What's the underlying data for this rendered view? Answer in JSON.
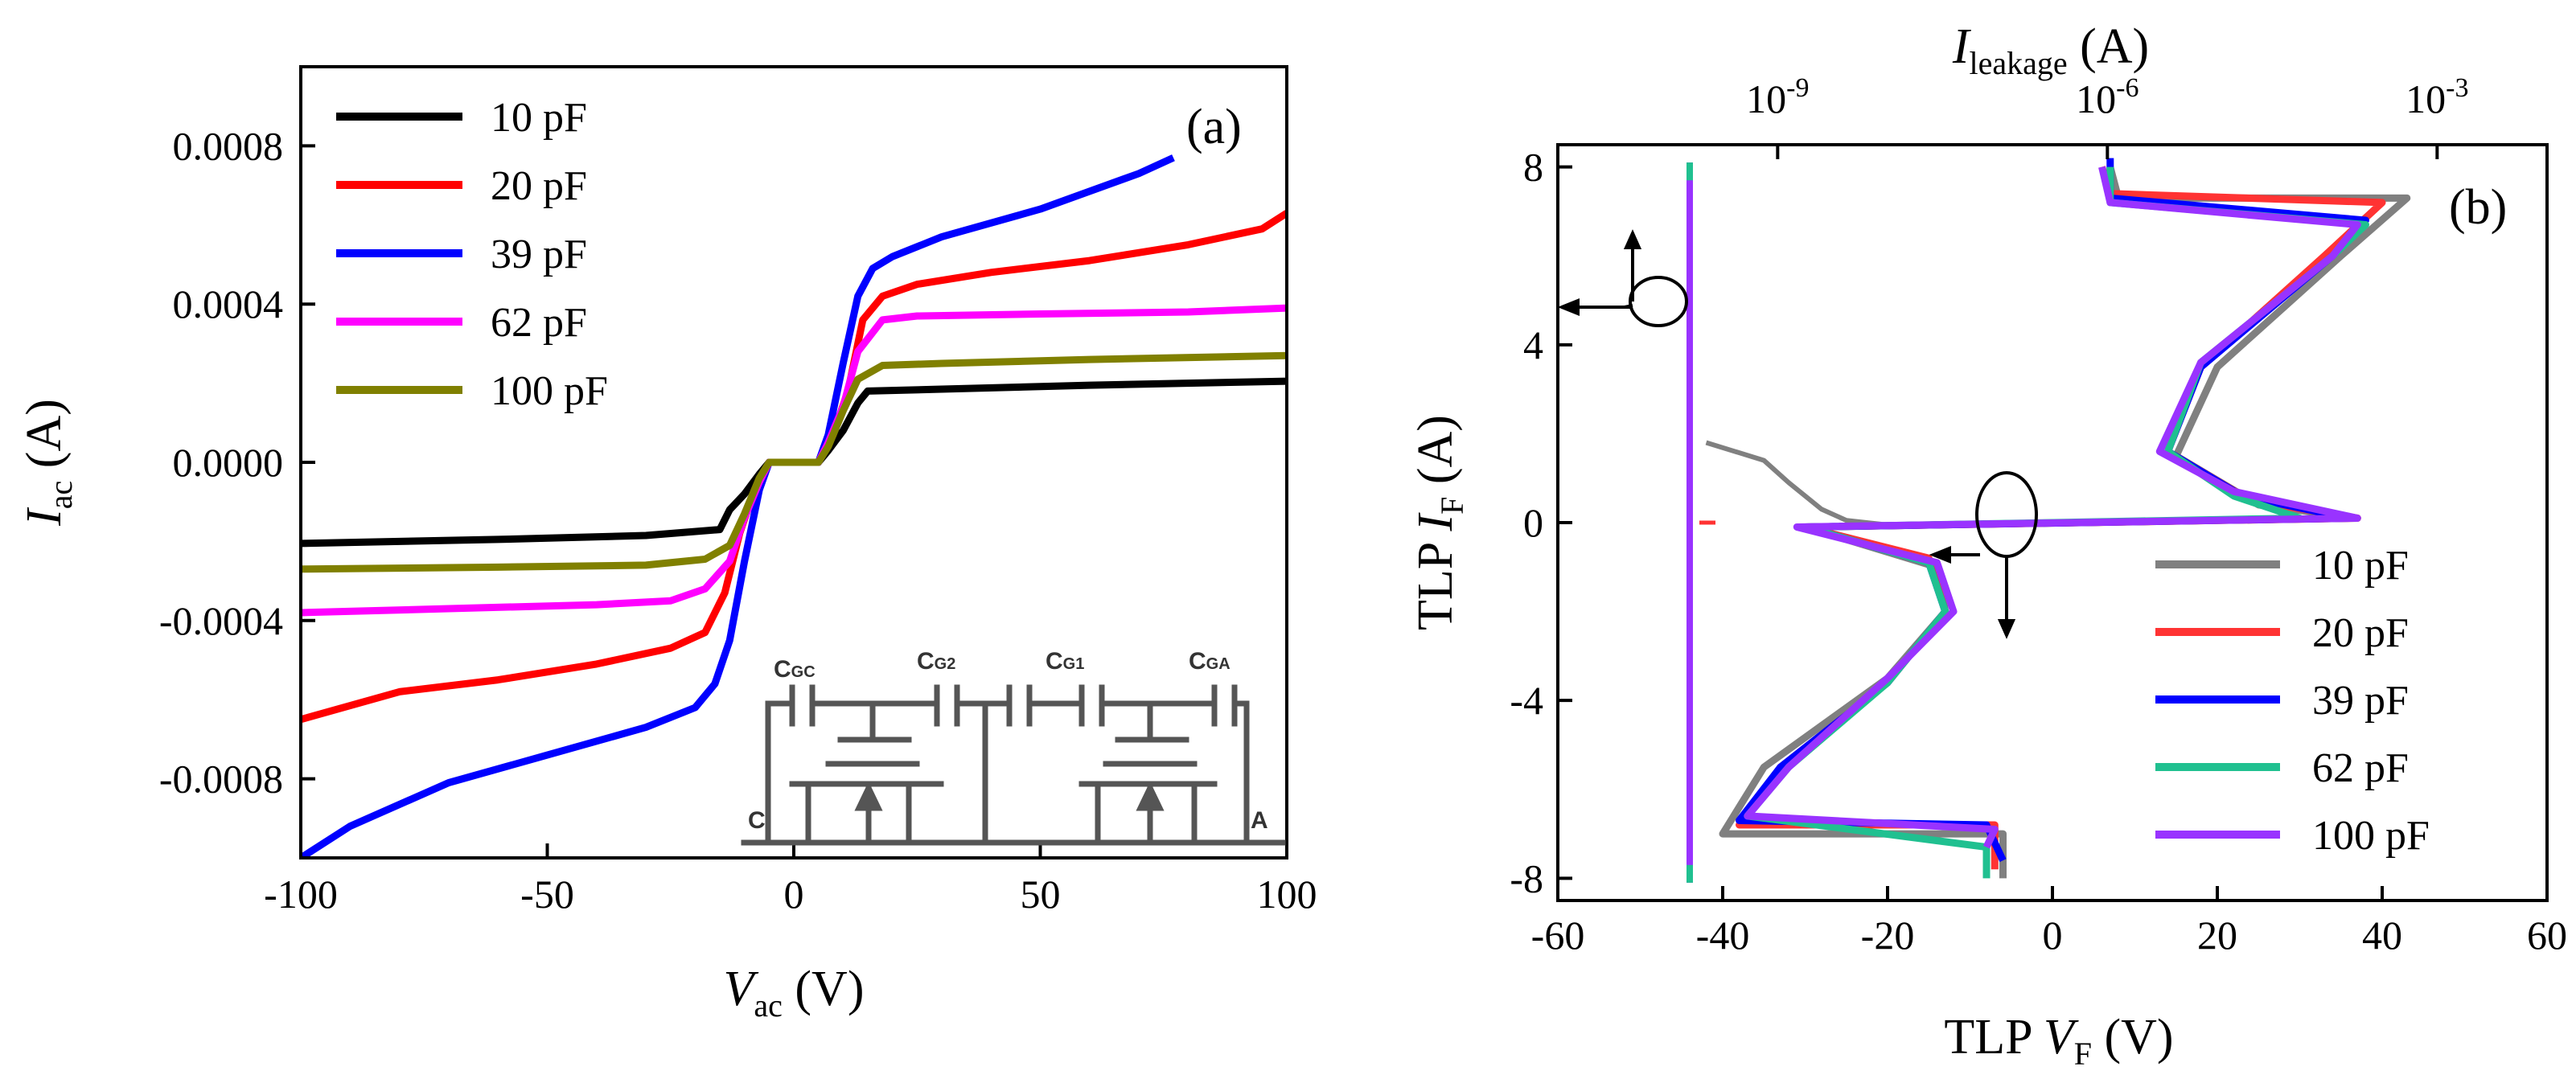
{
  "chart_data": [
    {
      "type": "line",
      "panel_label": "(a)",
      "xlabel_main": "V",
      "xlabel_sub": "ac",
      "xlabel_unit": " (V)",
      "ylabel_main": "I",
      "ylabel_sub": "ac",
      "ylabel_unit": " (A)",
      "xlim": [
        -100,
        100
      ],
      "ylim": [
        -0.001,
        0.001
      ],
      "xticks": [
        -100,
        -50,
        0,
        50,
        100
      ],
      "xtick_labels": [
        "-100",
        "-50",
        "0",
        "50",
        "100"
      ],
      "yticks": [
        -0.0008,
        -0.0004,
        0.0,
        0.0004,
        0.0008
      ],
      "ytick_labels": [
        "-0.0008",
        "-0.0004",
        "0.0000",
        "0.0004",
        "0.0008"
      ],
      "legend_position": "top-left",
      "series": [
        {
          "name": "10 pF",
          "color": "#000000",
          "points": [
            [
              -100,
              -0.000205
            ],
            [
              -60,
              -0.000195
            ],
            [
              -30,
              -0.000185
            ],
            [
              -15,
              -0.00017
            ],
            [
              -13,
              -0.00012
            ],
            [
              -10,
              -8e-05
            ],
            [
              -7,
              -3e-05
            ],
            [
              -5,
              0
            ],
            [
              5,
              0
            ],
            [
              7,
              3e-05
            ],
            [
              10,
              8e-05
            ],
            [
              13,
              0.00015
            ],
            [
              15,
              0.00018
            ],
            [
              30,
              0.000185
            ],
            [
              60,
              0.000195
            ],
            [
              100,
              0.000205
            ]
          ]
        },
        {
          "name": "20 pF",
          "color": "#ff0000",
          "points": [
            [
              -100,
              -0.00065
            ],
            [
              -80,
              -0.00058
            ],
            [
              -60,
              -0.00055
            ],
            [
              -40,
              -0.00051
            ],
            [
              -25,
              -0.00047
            ],
            [
              -18,
              -0.00043
            ],
            [
              -14,
              -0.00033
            ],
            [
              -11,
              -0.00018
            ],
            [
              -8,
              -7e-05
            ],
            [
              -5,
              0
            ],
            [
              5,
              0
            ],
            [
              8,
              7e-05
            ],
            [
              11,
              0.00018
            ],
            [
              14,
              0.00036
            ],
            [
              18,
              0.00042
            ],
            [
              25,
              0.00045
            ],
            [
              40,
              0.00048
            ],
            [
              60,
              0.00051
            ],
            [
              80,
              0.00055
            ],
            [
              95,
              0.00059
            ],
            [
              100,
              0.00063
            ]
          ]
        },
        {
          "name": "39 pF",
          "color": "#0000ff",
          "points": [
            [
              -100,
              -0.001
            ],
            [
              -90,
              -0.00092
            ],
            [
              -70,
              -0.00081
            ],
            [
              -50,
              -0.00074
            ],
            [
              -30,
              -0.00067
            ],
            [
              -20,
              -0.00062
            ],
            [
              -16,
              -0.00056
            ],
            [
              -13,
              -0.00045
            ],
            [
              -10,
              -0.00025
            ],
            [
              -7,
              -7e-05
            ],
            [
              -5,
              0
            ],
            [
              5,
              0
            ],
            [
              7,
              7e-05
            ],
            [
              10,
              0.00025
            ],
            [
              13,
              0.00042
            ],
            [
              16,
              0.00049
            ],
            [
              20,
              0.00052
            ],
            [
              30,
              0.00057
            ],
            [
              50,
              0.00064
            ],
            [
              70,
              0.00073
            ],
            [
              77,
              0.00077
            ]
          ]
        },
        {
          "name": "62 pF",
          "color": "#ff00ff",
          "points": [
            [
              -100,
              -0.00038
            ],
            [
              -70,
              -0.00037
            ],
            [
              -40,
              -0.00036
            ],
            [
              -25,
              -0.00035
            ],
            [
              -18,
              -0.00032
            ],
            [
              -13,
              -0.00025
            ],
            [
              -10,
              -0.00014
            ],
            [
              -7,
              -5e-05
            ],
            [
              -5,
              0
            ],
            [
              5,
              0
            ],
            [
              7,
              5e-05
            ],
            [
              10,
              0.00014
            ],
            [
              13,
              0.00028
            ],
            [
              18,
              0.00036
            ],
            [
              25,
              0.00037
            ],
            [
              50,
              0.000375
            ],
            [
              80,
              0.00038
            ],
            [
              100,
              0.00039
            ]
          ]
        },
        {
          "name": "100 pF",
          "color": "#808000",
          "points": [
            [
              -100,
              -0.00027
            ],
            [
              -60,
              -0.000265
            ],
            [
              -30,
              -0.00026
            ],
            [
              -18,
              -0.000245
            ],
            [
              -13,
              -0.00021
            ],
            [
              -10,
              -0.00013
            ],
            [
              -7,
              -4e-05
            ],
            [
              -5,
              0
            ],
            [
              5,
              0
            ],
            [
              7,
              4e-05
            ],
            [
              10,
              0.00013
            ],
            [
              13,
              0.00021
            ],
            [
              18,
              0.000245
            ],
            [
              30,
              0.00025
            ],
            [
              60,
              0.00026
            ],
            [
              100,
              0.00027
            ]
          ]
        }
      ],
      "inset_labels": {
        "cgc": "GC",
        "cg2": "G2",
        "cg1": "G1",
        "cga": "GA",
        "c_letter": "C",
        "cathode": "C",
        "anode": "A"
      }
    },
    {
      "type": "line",
      "panel_label": "(b)",
      "xlabel_pre": "TLP ",
      "xlabel_main": "V",
      "xlabel_sub": "F",
      "xlabel_unit": " (V)",
      "ylabel_pre": "TLP ",
      "ylabel_main": "I",
      "ylabel_sub": "F",
      "ylabel_unit": " (A)",
      "top_xlabel_main": "I",
      "top_xlabel_sub": "leakage",
      "top_xlabel_unit": " (A)",
      "xlim": [
        -60,
        60
      ],
      "ylim": [
        -8.5,
        8.5
      ],
      "xticks": [
        -60,
        -40,
        -20,
        0,
        20,
        40,
        60
      ],
      "xtick_labels": [
        "-60",
        "-40",
        "-20",
        "0",
        "20",
        "40",
        "60"
      ],
      "yticks": [
        -8,
        -4,
        0,
        4,
        8
      ],
      "ytick_labels": [
        "-8",
        "-4",
        "0",
        "4",
        "8"
      ],
      "top_axis_scale": "log",
      "top_xlim": [
        1e-11,
        0.01
      ],
      "top_ticks": [
        {
          "value": 1e-09,
          "base": "10",
          "exp": "-9"
        },
        {
          "value": 1e-06,
          "base": "10",
          "exp": "-6"
        },
        {
          "value": 0.001,
          "base": "10",
          "exp": "-3"
        }
      ],
      "legend_position": "bottom-right",
      "series": [
        {
          "name": "10 pF",
          "color": "#808080",
          "points": [
            [
              -6,
              -8.0
            ],
            [
              -6,
              -7.0
            ],
            [
              -40,
              -7.0
            ],
            [
              -35,
              -5.5
            ],
            [
              -20,
              -3.5
            ],
            [
              -13,
              -2.0
            ],
            [
              -14,
              -1.0
            ],
            [
              -30,
              -0.1
            ],
            [
              37,
              0.1
            ],
            [
              25,
              0.4
            ],
            [
              15,
              1.5
            ],
            [
              20,
              3.5
            ],
            [
              35,
              6.0
            ],
            [
              43,
              7.3
            ],
            [
              8,
              7.3
            ],
            [
              7,
              8.0
            ]
          ]
        },
        {
          "name": "20 pF",
          "color": "#ff3333",
          "points": [
            [
              -7,
              -7.8
            ],
            [
              -7,
              -6.8
            ],
            [
              -38,
              -6.8
            ],
            [
              -33,
              -5.5
            ],
            [
              -20,
              -3.6
            ],
            [
              -13,
              -2.0
            ],
            [
              -15,
              -0.8
            ],
            [
              -30,
              -0.1
            ],
            [
              37,
              0.1
            ],
            [
              24,
              0.5
            ],
            [
              14,
              1.6
            ],
            [
              18,
              3.5
            ],
            [
              33,
              6.0
            ],
            [
              40,
              7.2
            ],
            [
              7,
              7.4
            ],
            [
              6,
              8.0
            ]
          ]
        },
        {
          "name": "39 pF",
          "color": "#0000ff",
          "points": [
            [
              -6,
              -7.6
            ],
            [
              -8,
              -6.8
            ],
            [
              -38,
              -6.7
            ],
            [
              -33,
              -5.5
            ],
            [
              -20,
              -3.6
            ],
            [
              -13,
              -2.0
            ],
            [
              -15,
              -0.9
            ],
            [
              -30,
              -0.1
            ],
            [
              36,
              0.1
            ],
            [
              23,
              0.6
            ],
            [
              14,
              1.6
            ],
            [
              18,
              3.5
            ],
            [
              34,
              6.0
            ],
            [
              38,
              6.8
            ],
            [
              7,
              7.3
            ],
            [
              7,
              8.2
            ]
          ]
        },
        {
          "name": "62 pF",
          "color": "#20c090",
          "points": [
            [
              -8,
              -8.0
            ],
            [
              -8,
              -7.3
            ],
            [
              -37,
              -6.6
            ],
            [
              -32,
              -5.5
            ],
            [
              -20,
              -3.6
            ],
            [
              -13,
              -2.0
            ],
            [
              -15,
              -0.9
            ],
            [
              -30,
              -0.1
            ],
            [
              30,
              0.1
            ],
            [
              22,
              0.6
            ],
            [
              14,
              1.6
            ],
            [
              18,
              3.6
            ],
            [
              34,
              6.0
            ],
            [
              38,
              6.7
            ],
            [
              7,
              7.2
            ],
            [
              7,
              8.0
            ]
          ]
        },
        {
          "name": "100 pF",
          "color": "#9933ff",
          "points": [
            [
              -8,
              -7.3
            ],
            [
              -7,
              -6.9
            ],
            [
              -37,
              -6.6
            ],
            [
              -32,
              -5.5
            ],
            [
              -20,
              -3.5
            ],
            [
              -12,
              -2.0
            ],
            [
              -14,
              -0.9
            ],
            [
              -31,
              -0.1
            ],
            [
              37,
              0.1
            ],
            [
              22,
              0.7
            ],
            [
              13,
              1.6
            ],
            [
              18,
              3.6
            ],
            [
              34,
              6.0
            ],
            [
              37,
              6.7
            ],
            [
              7,
              7.2
            ],
            [
              6,
              8.0
            ]
          ]
        }
      ],
      "leakage_series": {
        "color": "#808080",
        "points": [
          [
            -42,
            1.8
          ],
          [
            -35,
            1.4
          ],
          [
            -32,
            0.9
          ],
          [
            -30,
            0.6
          ],
          [
            -28,
            0.3
          ],
          [
            -25,
            0.05
          ],
          [
            -20,
            -0.05
          ]
        ]
      },
      "leakage_vertical": {
        "x": -44,
        "color": "#9933ff",
        "accent": "#20c090",
        "y_from": -8.1,
        "y_to": 8.1
      },
      "reference_dash": {
        "y": 0,
        "color": "#ff3333"
      }
    }
  ]
}
